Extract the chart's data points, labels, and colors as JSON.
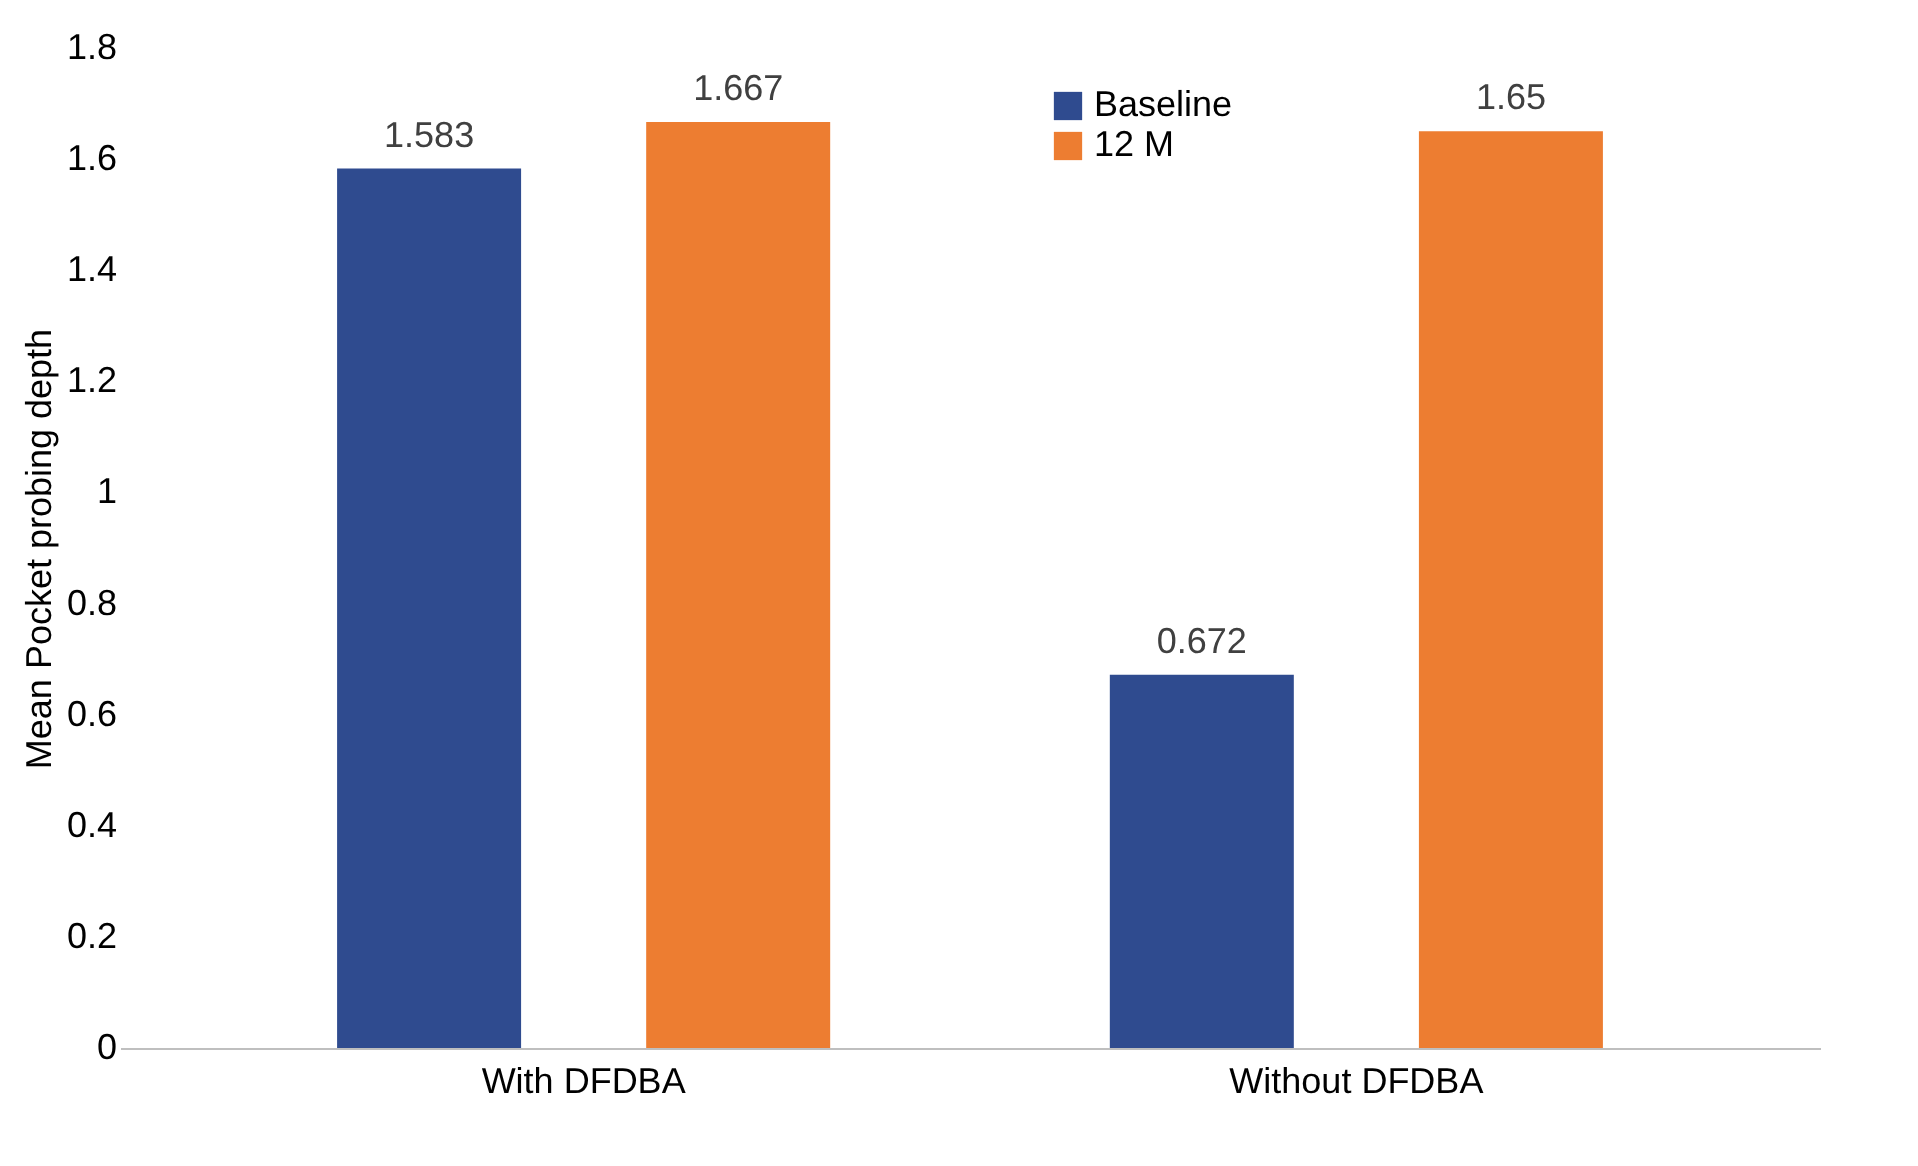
{
  "chart_data": {
    "type": "bar",
    "ylabel": "Mean Pocket probing depth",
    "categories": [
      "With DFDBA",
      "Without DFDBA"
    ],
    "series": [
      {
        "name": "Baseline",
        "color": "#2f4b8f",
        "values": [
          1.583,
          0.672
        ]
      },
      {
        "name": "12 M",
        "color": "#ed7d31",
        "values": [
          1.667,
          1.65
        ]
      }
    ],
    "ylim": [
      0,
      1.8
    ],
    "yticks": [
      0,
      0.2,
      0.4,
      0.6,
      0.8,
      1,
      1.2,
      1.4,
      1.6,
      1.8
    ],
    "grid": false,
    "legend": "top",
    "data_labels": true
  }
}
